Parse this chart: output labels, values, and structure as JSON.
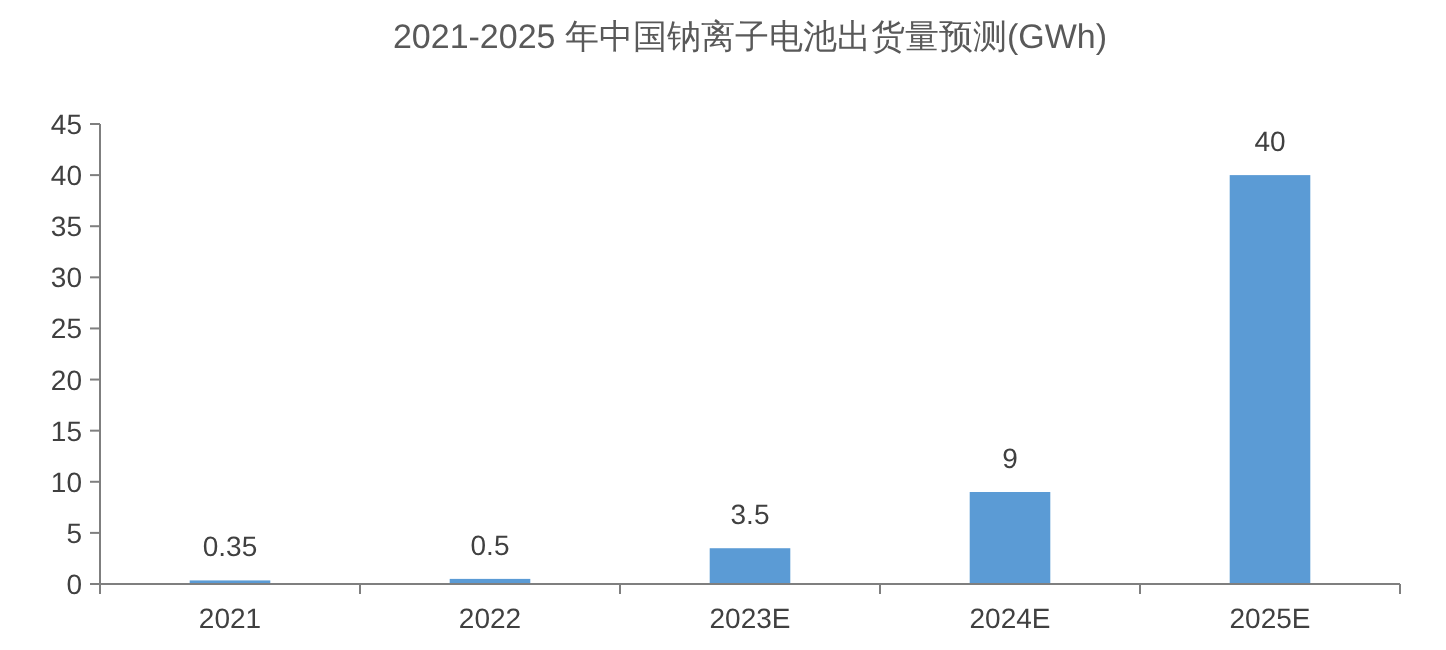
{
  "chart_data": {
    "type": "bar",
    "title": "2021-2025 年中国钠离子电池出货量预测(GWh)",
    "categories": [
      "2021",
      "2022",
      "2023E",
      "2024E",
      "2025E"
    ],
    "values": [
      0.35,
      0.5,
      3.5,
      9,
      40
    ],
    "color": "#5b9bd5",
    "ylim": [
      0,
      45
    ],
    "yticks": [
      0,
      5,
      10,
      15,
      20,
      25,
      30,
      35,
      40,
      45
    ],
    "data_labels": true
  }
}
